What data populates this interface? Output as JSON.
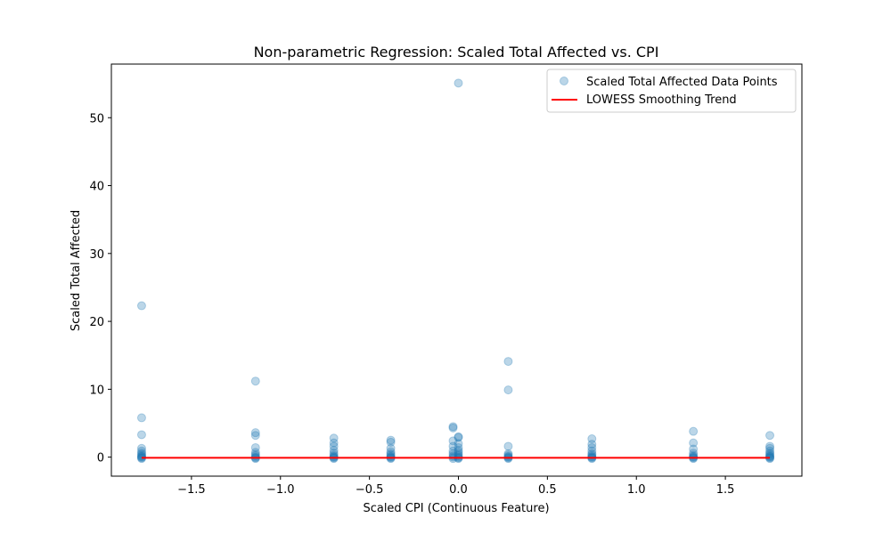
{
  "chart_data": {
    "type": "scatter",
    "title": "Non-parametric Regression: Scaled Total Affected vs. CPI",
    "xlabel": "Scaled CPI (Continuous Feature)",
    "ylabel": "Scaled Total Affected",
    "xlim": [
      -1.95,
      1.93
    ],
    "ylim": [
      -2.8,
      57.9
    ],
    "xticks": [
      -1.5,
      -1.0,
      -0.5,
      0.0,
      0.5,
      1.0,
      1.5
    ],
    "xtick_labels": [
      "−1.5",
      "−1.0",
      "−0.5",
      "0.0",
      "0.5",
      "1.0",
      "1.5"
    ],
    "yticks": [
      0,
      10,
      20,
      30,
      40,
      50
    ],
    "ytick_labels": [
      "0",
      "10",
      "20",
      "30",
      "40",
      "50"
    ],
    "grid": false,
    "legend_position": "top-right",
    "series": [
      {
        "name": "Scaled Total Affected Data Points",
        "kind": "scatter",
        "color": "#1f77b4",
        "opacity": 0.3,
        "points": [
          [
            -1.78,
            22.3
          ],
          [
            -1.78,
            5.8
          ],
          [
            -1.78,
            3.3
          ],
          [
            -1.78,
            1.3
          ],
          [
            -1.78,
            0.9
          ],
          [
            -1.78,
            0.6
          ],
          [
            -1.78,
            0.4
          ],
          [
            -1.78,
            0.2
          ],
          [
            -1.78,
            0.1
          ],
          [
            -1.78,
            0.0
          ],
          [
            -1.78,
            -0.1
          ],
          [
            -1.78,
            -0.2
          ],
          [
            -1.14,
            11.2
          ],
          [
            -1.14,
            3.6
          ],
          [
            -1.14,
            3.2
          ],
          [
            -1.14,
            1.4
          ],
          [
            -1.14,
            0.7
          ],
          [
            -1.14,
            0.4
          ],
          [
            -1.14,
            0.2
          ],
          [
            -1.14,
            0.0
          ],
          [
            -1.14,
            -0.1
          ],
          [
            -1.14,
            -0.2
          ],
          [
            -0.7,
            2.8
          ],
          [
            -0.7,
            2.1
          ],
          [
            -0.7,
            1.6
          ],
          [
            -0.7,
            1.0
          ],
          [
            -0.7,
            0.6
          ],
          [
            -0.7,
            0.3
          ],
          [
            -0.7,
            0.1
          ],
          [
            -0.7,
            0.0
          ],
          [
            -0.7,
            -0.1
          ],
          [
            -0.7,
            -0.2
          ],
          [
            -0.38,
            2.5
          ],
          [
            -0.38,
            2.2
          ],
          [
            -0.38,
            1.3
          ],
          [
            -0.38,
            0.8
          ],
          [
            -0.38,
            0.5
          ],
          [
            -0.38,
            0.3
          ],
          [
            -0.38,
            0.1
          ],
          [
            -0.38,
            0.0
          ],
          [
            -0.38,
            -0.1
          ],
          [
            -0.38,
            -0.2
          ],
          [
            -0.03,
            4.5
          ],
          [
            -0.03,
            4.3
          ],
          [
            -0.03,
            2.4
          ],
          [
            -0.03,
            1.6
          ],
          [
            -0.03,
            0.9
          ],
          [
            -0.03,
            0.5
          ],
          [
            -0.03,
            0.2
          ],
          [
            -0.03,
            0.0
          ],
          [
            -0.03,
            -0.2
          ],
          [
            0.0,
            55.1
          ],
          [
            0.0,
            3.0
          ],
          [
            0.0,
            2.9
          ],
          [
            0.0,
            2.0
          ],
          [
            0.0,
            1.4
          ],
          [
            0.0,
            1.0
          ],
          [
            0.0,
            0.7
          ],
          [
            0.0,
            0.4
          ],
          [
            0.0,
            0.2
          ],
          [
            0.0,
            0.0
          ],
          [
            0.0,
            -0.1
          ],
          [
            0.0,
            -0.2
          ],
          [
            0.28,
            14.1
          ],
          [
            0.28,
            9.9
          ],
          [
            0.28,
            1.6
          ],
          [
            0.28,
            0.5
          ],
          [
            0.28,
            0.3
          ],
          [
            0.28,
            0.1
          ],
          [
            0.28,
            0.0
          ],
          [
            0.28,
            -0.1
          ],
          [
            0.28,
            -0.2
          ],
          [
            0.75,
            2.7
          ],
          [
            0.75,
            1.9
          ],
          [
            0.75,
            1.4
          ],
          [
            0.75,
            0.9
          ],
          [
            0.75,
            0.5
          ],
          [
            0.75,
            0.3
          ],
          [
            0.75,
            0.1
          ],
          [
            0.75,
            0.0
          ],
          [
            0.75,
            -0.1
          ],
          [
            0.75,
            -0.2
          ],
          [
            1.32,
            3.8
          ],
          [
            1.32,
            2.1
          ],
          [
            1.32,
            1.2
          ],
          [
            1.32,
            0.6
          ],
          [
            1.32,
            0.3
          ],
          [
            1.32,
            0.1
          ],
          [
            1.32,
            0.0
          ],
          [
            1.32,
            -0.1
          ],
          [
            1.32,
            -0.2
          ],
          [
            1.75,
            3.2
          ],
          [
            1.75,
            1.6
          ],
          [
            1.75,
            1.3
          ],
          [
            1.75,
            0.9
          ],
          [
            1.75,
            0.6
          ],
          [
            1.75,
            0.4
          ],
          [
            1.75,
            0.2
          ],
          [
            1.75,
            0.1
          ],
          [
            1.75,
            0.0
          ],
          [
            1.75,
            -0.1
          ],
          [
            1.75,
            -0.2
          ]
        ]
      },
      {
        "name": "LOWESS Smoothing Trend",
        "kind": "line",
        "color": "#ff0000",
        "points": [
          [
            -1.78,
            -0.1
          ],
          [
            -1.14,
            -0.1
          ],
          [
            -0.7,
            -0.1
          ],
          [
            -0.38,
            -0.1
          ],
          [
            0.0,
            -0.1
          ],
          [
            0.28,
            -0.1
          ],
          [
            0.75,
            -0.1
          ],
          [
            1.32,
            -0.1
          ],
          [
            1.75,
            -0.1
          ]
        ]
      }
    ]
  }
}
